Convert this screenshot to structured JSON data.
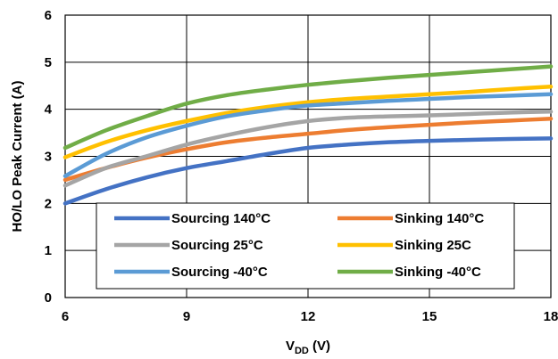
{
  "chart_data": {
    "type": "line",
    "xlabel_main": "V",
    "xlabel_sub": "DD",
    "xlabel_unit": " (V)",
    "ylabel": "HO/LO Peak Current (A)",
    "xlim": [
      6,
      18
    ],
    "ylim": [
      0,
      6
    ],
    "xticks": [
      6,
      9,
      12,
      15,
      18
    ],
    "yticks": [
      0,
      1,
      2,
      3,
      4,
      5,
      6
    ],
    "grid": true,
    "legend_placement": "bottom-center",
    "series": [
      {
        "name": "Sourcing 140°C",
        "color": "#4472C4",
        "x": [
          6,
          7,
          8,
          9,
          10,
          11,
          12,
          13,
          14,
          15,
          16,
          17,
          18
        ],
        "y": [
          2.0,
          2.3,
          2.55,
          2.75,
          2.9,
          3.05,
          3.18,
          3.25,
          3.3,
          3.33,
          3.35,
          3.37,
          3.38
        ]
      },
      {
        "name": "Sinking 140°C",
        "color": "#ED7D31",
        "x": [
          6,
          7,
          8,
          9,
          10,
          11,
          12,
          13,
          14,
          15,
          16,
          17,
          18
        ],
        "y": [
          2.5,
          2.75,
          2.97,
          3.15,
          3.3,
          3.4,
          3.48,
          3.56,
          3.62,
          3.67,
          3.72,
          3.76,
          3.8
        ]
      },
      {
        "name": "Sourcing 25°C",
        "color": "#A5A5A5",
        "x": [
          6,
          7,
          8,
          9,
          10,
          11,
          12,
          13,
          14,
          15,
          16,
          17,
          18
        ],
        "y": [
          2.38,
          2.75,
          3.0,
          3.25,
          3.45,
          3.62,
          3.75,
          3.82,
          3.85,
          3.87,
          3.9,
          3.93,
          3.95
        ]
      },
      {
        "name": "Sinking 25C",
        "color": "#FFC000",
        "x": [
          6,
          7,
          8,
          9,
          10,
          11,
          12,
          13,
          14,
          15,
          16,
          17,
          18
        ],
        "y": [
          2.98,
          3.3,
          3.55,
          3.75,
          3.92,
          4.05,
          4.15,
          4.22,
          4.27,
          4.32,
          4.37,
          4.43,
          4.48
        ]
      },
      {
        "name": "Sourcing -40°C",
        "color": "#5B9BD5",
        "x": [
          6,
          7,
          8,
          9,
          10,
          11,
          12,
          13,
          14,
          15,
          16,
          17,
          18
        ],
        "y": [
          2.58,
          3.05,
          3.4,
          3.65,
          3.85,
          3.98,
          4.08,
          4.13,
          4.18,
          4.22,
          4.26,
          4.29,
          4.32
        ]
      },
      {
        "name": "Sinking -40°C",
        "color": "#70AD47",
        "x": [
          6,
          7,
          8,
          9,
          10,
          11,
          12,
          13,
          14,
          15,
          16,
          17,
          18
        ],
        "y": [
          3.18,
          3.55,
          3.85,
          4.12,
          4.3,
          4.42,
          4.52,
          4.6,
          4.67,
          4.73,
          4.79,
          4.85,
          4.91
        ]
      }
    ]
  }
}
